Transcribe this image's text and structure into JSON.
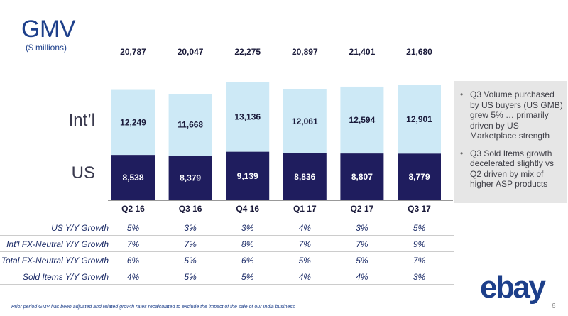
{
  "title": "GMV",
  "subtitle": "($ millions)",
  "segment_labels": {
    "intl": "Int’l",
    "us": "US"
  },
  "chart_data": {
    "type": "bar",
    "stacked": true,
    "categories": [
      "Q2 16",
      "Q3 16",
      "Q4 16",
      "Q1 17",
      "Q2 17",
      "Q3 17"
    ],
    "series": [
      {
        "name": "US",
        "values": [
          8538,
          8379,
          9139,
          8836,
          8807,
          8779
        ],
        "color": "#1f1d5e",
        "label_color": "#ffffff"
      },
      {
        "name": "Int'l",
        "values": [
          12249,
          11668,
          13136,
          12061,
          12594,
          12901
        ],
        "color": "#cde9f6",
        "label_color": "#1a1a3a"
      }
    ],
    "totals": [
      20787,
      20047,
      22275,
      20897,
      21401,
      21680
    ],
    "value_labels": {
      "US": [
        "8,538",
        "8,379",
        "9,139",
        "8,836",
        "8,807",
        "8,779"
      ],
      "Int'l": [
        "12,249",
        "11,668",
        "13,136",
        "12,061",
        "12,594",
        "12,901"
      ],
      "totals": [
        "20,787",
        "20,047",
        "22,275",
        "20,897",
        "21,401",
        "21,680"
      ]
    },
    "ylim": [
      0,
      23000
    ]
  },
  "commentary": [
    "Q3 Volume purchased by US buyers (US GMB) grew 5% … primarily driven by US Marketplace strength",
    "Q3 Sold Items growth decelerated slightly vs Q2 driven by mix of higher ASP products"
  ],
  "metrics": [
    {
      "name": "US Y/Y Growth",
      "values": [
        "5%",
        "3%",
        "3%",
        "4%",
        "3%",
        "5%"
      ]
    },
    {
      "name": "Int'l FX-Neutral Y/Y Growth",
      "values": [
        "7%",
        "7%",
        "8%",
        "7%",
        "7%",
        "9%"
      ]
    },
    {
      "name": "Total FX-Neutral Y/Y Growth",
      "values": [
        "6%",
        "5%",
        "6%",
        "5%",
        "5%",
        "7%"
      ]
    },
    {
      "name": "Sold Items Y/Y Growth",
      "values": [
        "4%",
        "5%",
        "5%",
        "4%",
        "4%",
        "3%"
      ]
    }
  ],
  "footnote": "Prior period GMV has been adjusted and related growth rates recalculated to exclude the impact of the sale of our India business",
  "page_number": "6",
  "logo_text": "ebay",
  "colors": {
    "us_bar": "#1f1d5e",
    "intl_bar": "#cde9f6",
    "title": "#1d3f8a",
    "commentary_bg": "#e6e6e6"
  }
}
